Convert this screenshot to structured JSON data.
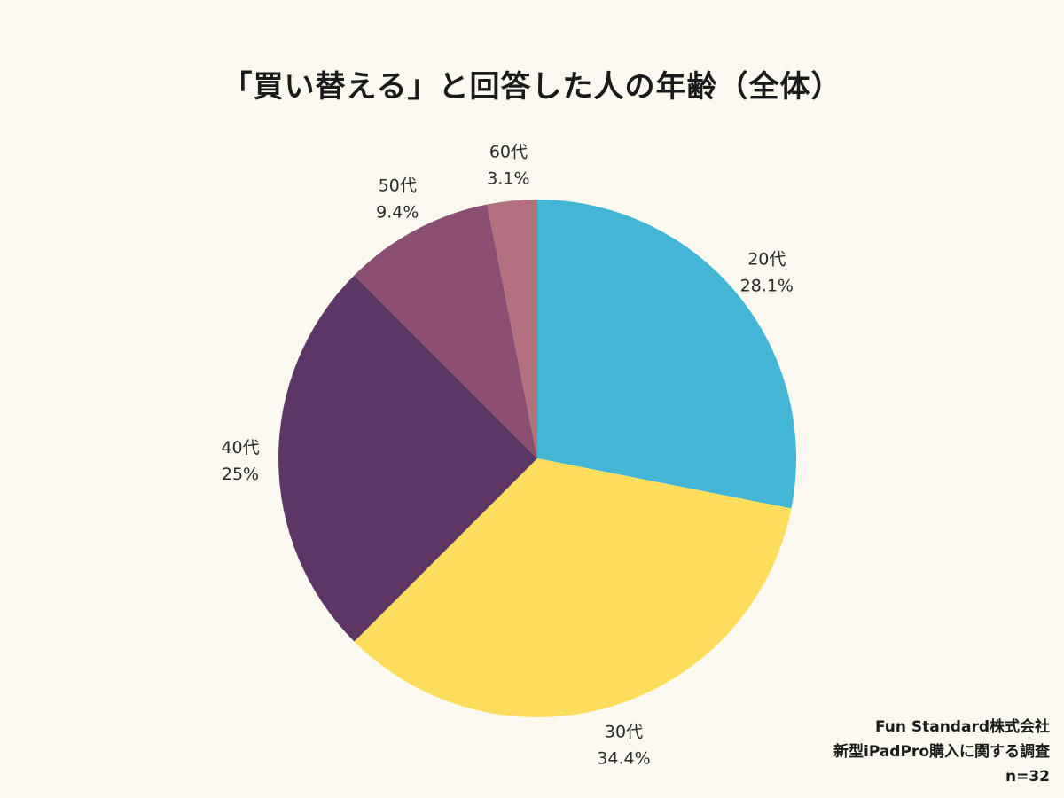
{
  "chart_data": {
    "type": "pie",
    "title": "「買い替える」と回答した人の年齢（全体）",
    "slices": [
      {
        "label": "20代",
        "percent_label": "28.1%",
        "value": 28.1,
        "color": "#43b6d6"
      },
      {
        "label": "30代",
        "percent_label": "34.4%",
        "value": 34.4,
        "color": "#ffdd5c"
      },
      {
        "label": "40代",
        "percent_label": "25%",
        "value": 25.0,
        "color": "#5e3567"
      },
      {
        "label": "50代",
        "percent_label": "9.4%",
        "value": 9.4,
        "color": "#8b4f73"
      },
      {
        "label": "60代",
        "percent_label": "3.1%",
        "value": 3.1,
        "color": "#b27080"
      }
    ]
  },
  "footer": {
    "company": "Fun Standard株式会社",
    "survey": "新型iPadPro購入に関する調査",
    "sample": "n=32"
  }
}
